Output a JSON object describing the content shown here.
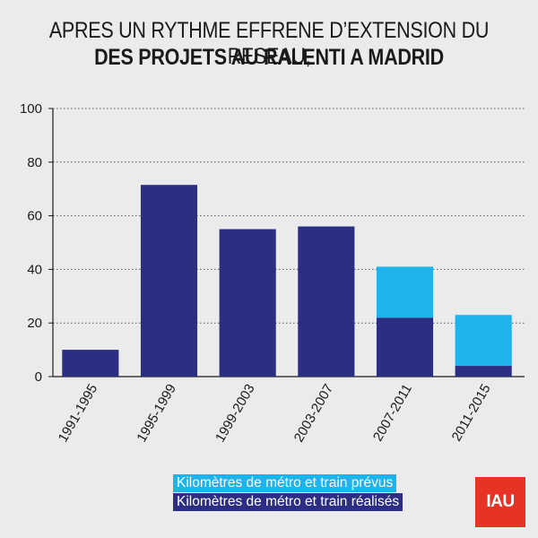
{
  "title": {
    "line1": "APRES UN RYTHME EFFRENE D’EXTENSION DU RESEAU,",
    "line2": "DES PROJETS AU RALENTI A MADRID"
  },
  "colors": {
    "realized": "#2b2e82",
    "planned": "#1eb3eb",
    "background": "#ebebeb",
    "logo": "#e63323"
  },
  "legend": {
    "planned": "Kilomètres de métro et train prévus",
    "realized": "Kilomètres de métro et train réalisés"
  },
  "logo": {
    "text": "IAU"
  },
  "chart_data": {
    "type": "bar",
    "stacked": true,
    "categories": [
      "1991-1995",
      "1995-1999",
      "1999-2003",
      "2003-2007",
      "2007-2011",
      "2011-2015"
    ],
    "series": [
      {
        "name": "Kilomètres de métro et train réalisés",
        "values": [
          10,
          71.5,
          55,
          56,
          22,
          4
        ]
      },
      {
        "name": "Kilomètres de métro et train prévus",
        "values": [
          0,
          0,
          0,
          0,
          19,
          19
        ]
      }
    ],
    "ylim": [
      0,
      100
    ],
    "yticks": [
      0,
      20,
      40,
      60,
      80,
      100
    ],
    "grid": true,
    "xlabel": "",
    "ylabel": "",
    "legend_position": "bottom-center"
  }
}
